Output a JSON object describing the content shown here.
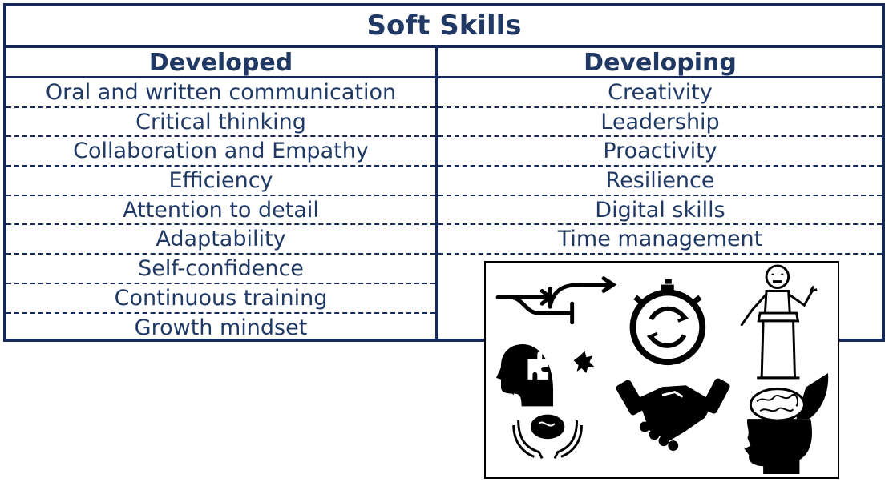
{
  "title": "Soft Skills",
  "headers": {
    "developed": "Developed",
    "developing": "Developing"
  },
  "developed": [
    "Oral and written communication",
    "Critical thinking",
    "Collaboration and Empathy",
    "Efficiency",
    "Attention to detail",
    "Adaptability",
    "Self-confidence",
    "Continuous training",
    "Growth mindset"
  ],
  "developing": [
    "Creativity",
    "Leadership",
    "Proactivity",
    "Resilience",
    "Digital skills",
    "Time management"
  ],
  "colors": {
    "text": "#1f3864",
    "border": "#14295a"
  },
  "icons": [
    "arrows-direction-icon",
    "stopwatch-icon",
    "speaker-podium-icon",
    "head-puzzle-icon",
    "handshake-icon",
    "open-head-brain-icon",
    "hands-brain-icon"
  ]
}
